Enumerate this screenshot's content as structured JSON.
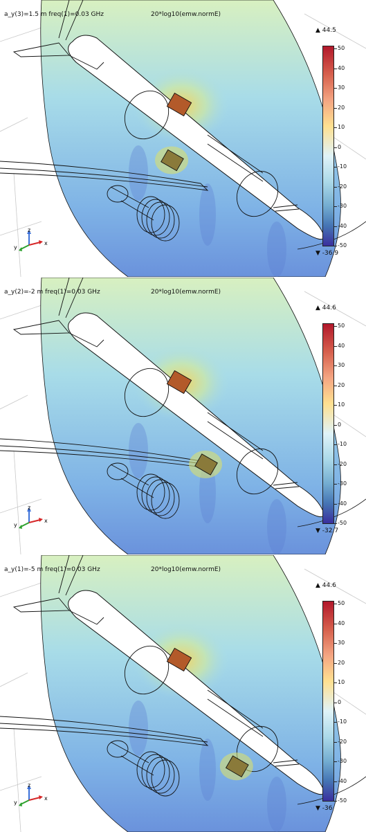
{
  "expression": "20*log10(emw.normE)",
  "colorbar_ticks": [
    "50",
    "40",
    "30",
    "20",
    "10",
    "0",
    "-10",
    "-20",
    "-30",
    "-40",
    "-50"
  ],
  "axes": {
    "x": "x",
    "y": "y",
    "z": "z"
  },
  "panels": [
    {
      "param": "a_y(3)=1.5 m freq(1)=0.03 GHz",
      "max": "44.5",
      "min": "-36.9",
      "antenna_pos": 0.15
    },
    {
      "param": "a_y(2)=-2 m freq(1)=0.03 GHz",
      "max": "44.6",
      "min": "-32.7",
      "antenna_pos": 0.5
    },
    {
      "param": "a_y(1)=-5 m freq(1)=0.03 GHz",
      "max": "44.6",
      "min": "-36",
      "antenna_pos": 0.82
    }
  ],
  "colors": {
    "bg_field": "#a8dce8",
    "hot": "#c0392b",
    "cool": "#5b7fd1",
    "outline": "#111111"
  }
}
